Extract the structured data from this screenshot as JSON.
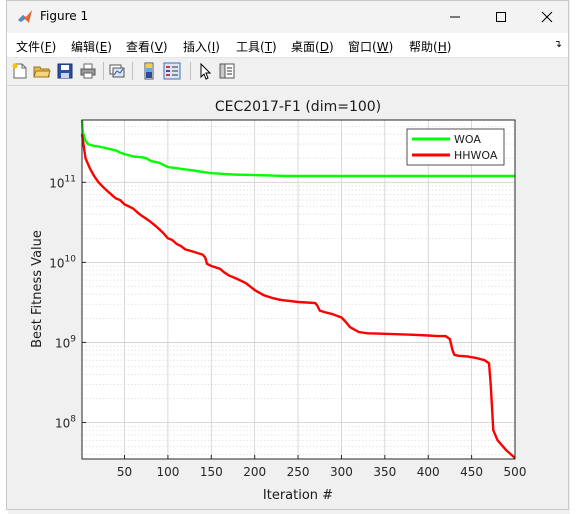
{
  "window": {
    "title": "Figure 1",
    "controls": [
      "minimize",
      "maximize",
      "close"
    ]
  },
  "menu": {
    "items": [
      {
        "label": "文件(",
        "key": "F",
        "end": ")"
      },
      {
        "label": "编辑(",
        "key": "E",
        "end": ")"
      },
      {
        "label": "查看(",
        "key": "V",
        "end": ")"
      },
      {
        "label": "插入(",
        "key": "I",
        "end": ")"
      },
      {
        "label": "工具(",
        "key": "T",
        "end": ")"
      },
      {
        "label": "桌面(",
        "key": "D",
        "end": ")"
      },
      {
        "label": "窗口(",
        "key": "W",
        "end": ")"
      },
      {
        "label": "帮助(",
        "key": "H",
        "end": ")"
      }
    ]
  },
  "toolbar": {
    "buttons": [
      "new-figure-icon",
      "open-file-icon",
      "save-icon",
      "print-icon",
      "link-plot-icon",
      "colorbar-icon",
      "legend-icon",
      "edit-plot-icon",
      "property-inspector-icon"
    ]
  },
  "colors": {
    "woa": "#00ff00",
    "hhwoa": "#ff0000"
  },
  "chart_data": {
    "type": "line",
    "title": "CEC2017-F1 (dim=100)",
    "xlabel": "Iteration #",
    "ylabel": "Best Fitness Value",
    "xlim": [
      1,
      500
    ],
    "ylim": [
      35000000,
      600000000000
    ],
    "yscale": "log",
    "grid": true,
    "legend_position": "top-right",
    "x_ticks": [
      "50",
      "100",
      "150",
      "200",
      "250",
      "300",
      "350",
      "400",
      "450",
      "500"
    ],
    "x_tick_values": [
      50,
      100,
      150,
      200,
      250,
      300,
      350,
      400,
      450,
      500
    ],
    "y_ticks": [
      {
        "value": 100000000,
        "base": "10",
        "exp": "8"
      },
      {
        "value": 1000000000,
        "base": "10",
        "exp": "9"
      },
      {
        "value": 10000000000,
        "base": "10",
        "exp": "10"
      },
      {
        "value": 100000000000,
        "base": "10",
        "exp": "11"
      }
    ],
    "series": [
      {
        "name": "WOA",
        "x": [
          1,
          2,
          5,
          8,
          12,
          20,
          30,
          40,
          45,
          50,
          60,
          70,
          75,
          80,
          90,
          95,
          100,
          110,
          120,
          130,
          140,
          150,
          160,
          175,
          200,
          225,
          235,
          250,
          300,
          400,
          500
        ],
        "y": [
          600000000000,
          420000000000,
          330000000000,
          300000000000,
          290000000000,
          280000000000,
          265000000000,
          250000000000,
          235000000000,
          225000000000,
          210000000000,
          205000000000,
          200000000000,
          185000000000,
          175000000000,
          165000000000,
          155000000000,
          150000000000,
          145000000000,
          140000000000,
          135000000000,
          130000000000,
          128000000000,
          125000000000,
          123000000000,
          121000000000,
          120000000000,
          120000000000,
          120000000000,
          120000000000,
          120000000000
        ]
      },
      {
        "name": "HHWOA",
        "x": [
          1,
          5,
          10,
          15,
          20,
          25,
          30,
          35,
          40,
          45,
          50,
          55,
          60,
          65,
          70,
          75,
          80,
          85,
          90,
          95,
          100,
          105,
          110,
          115,
          120,
          130,
          140,
          143,
          145,
          150,
          160,
          165,
          170,
          180,
          190,
          200,
          210,
          220,
          230,
          240,
          250,
          260,
          270,
          272,
          275,
          280,
          290,
          300,
          305,
          310,
          320,
          330,
          340,
          350,
          380,
          400,
          410,
          420,
          425,
          428,
          430,
          435,
          445,
          455,
          460,
          465,
          470,
          472,
          475,
          480,
          490,
          500
        ],
        "y": [
          400000000000,
          200000000000,
          150000000000,
          120000000000,
          100000000000,
          88000000000,
          78000000000,
          70000000000,
          63000000000,
          60000000000,
          53000000000,
          50000000000,
          47000000000,
          42000000000,
          38000000000,
          35000000000,
          32000000000,
          29000000000,
          26000000000,
          23000000000,
          20000000000,
          19000000000,
          17000000000,
          16000000000,
          14500000000,
          13500000000,
          12500000000,
          11500000000,
          9600000000,
          9000000000,
          8300000000,
          7500000000,
          6900000000,
          6200000000,
          5500000000,
          4500000000,
          3900000000,
          3600000000,
          3400000000,
          3300000000,
          3200000000,
          3150000000,
          3100000000,
          2900000000,
          2500000000,
          2400000000,
          2250000000,
          2050000000,
          1800000000,
          1550000000,
          1350000000,
          1300000000,
          1290000000,
          1280000000,
          1250000000,
          1220000000,
          1200000000,
          1200000000,
          1100000000,
          800000000,
          700000000,
          680000000,
          670000000,
          640000000,
          620000000,
          600000000,
          550000000,
          300000000,
          80000000,
          60000000,
          45000000,
          36000000
        ]
      }
    ]
  }
}
